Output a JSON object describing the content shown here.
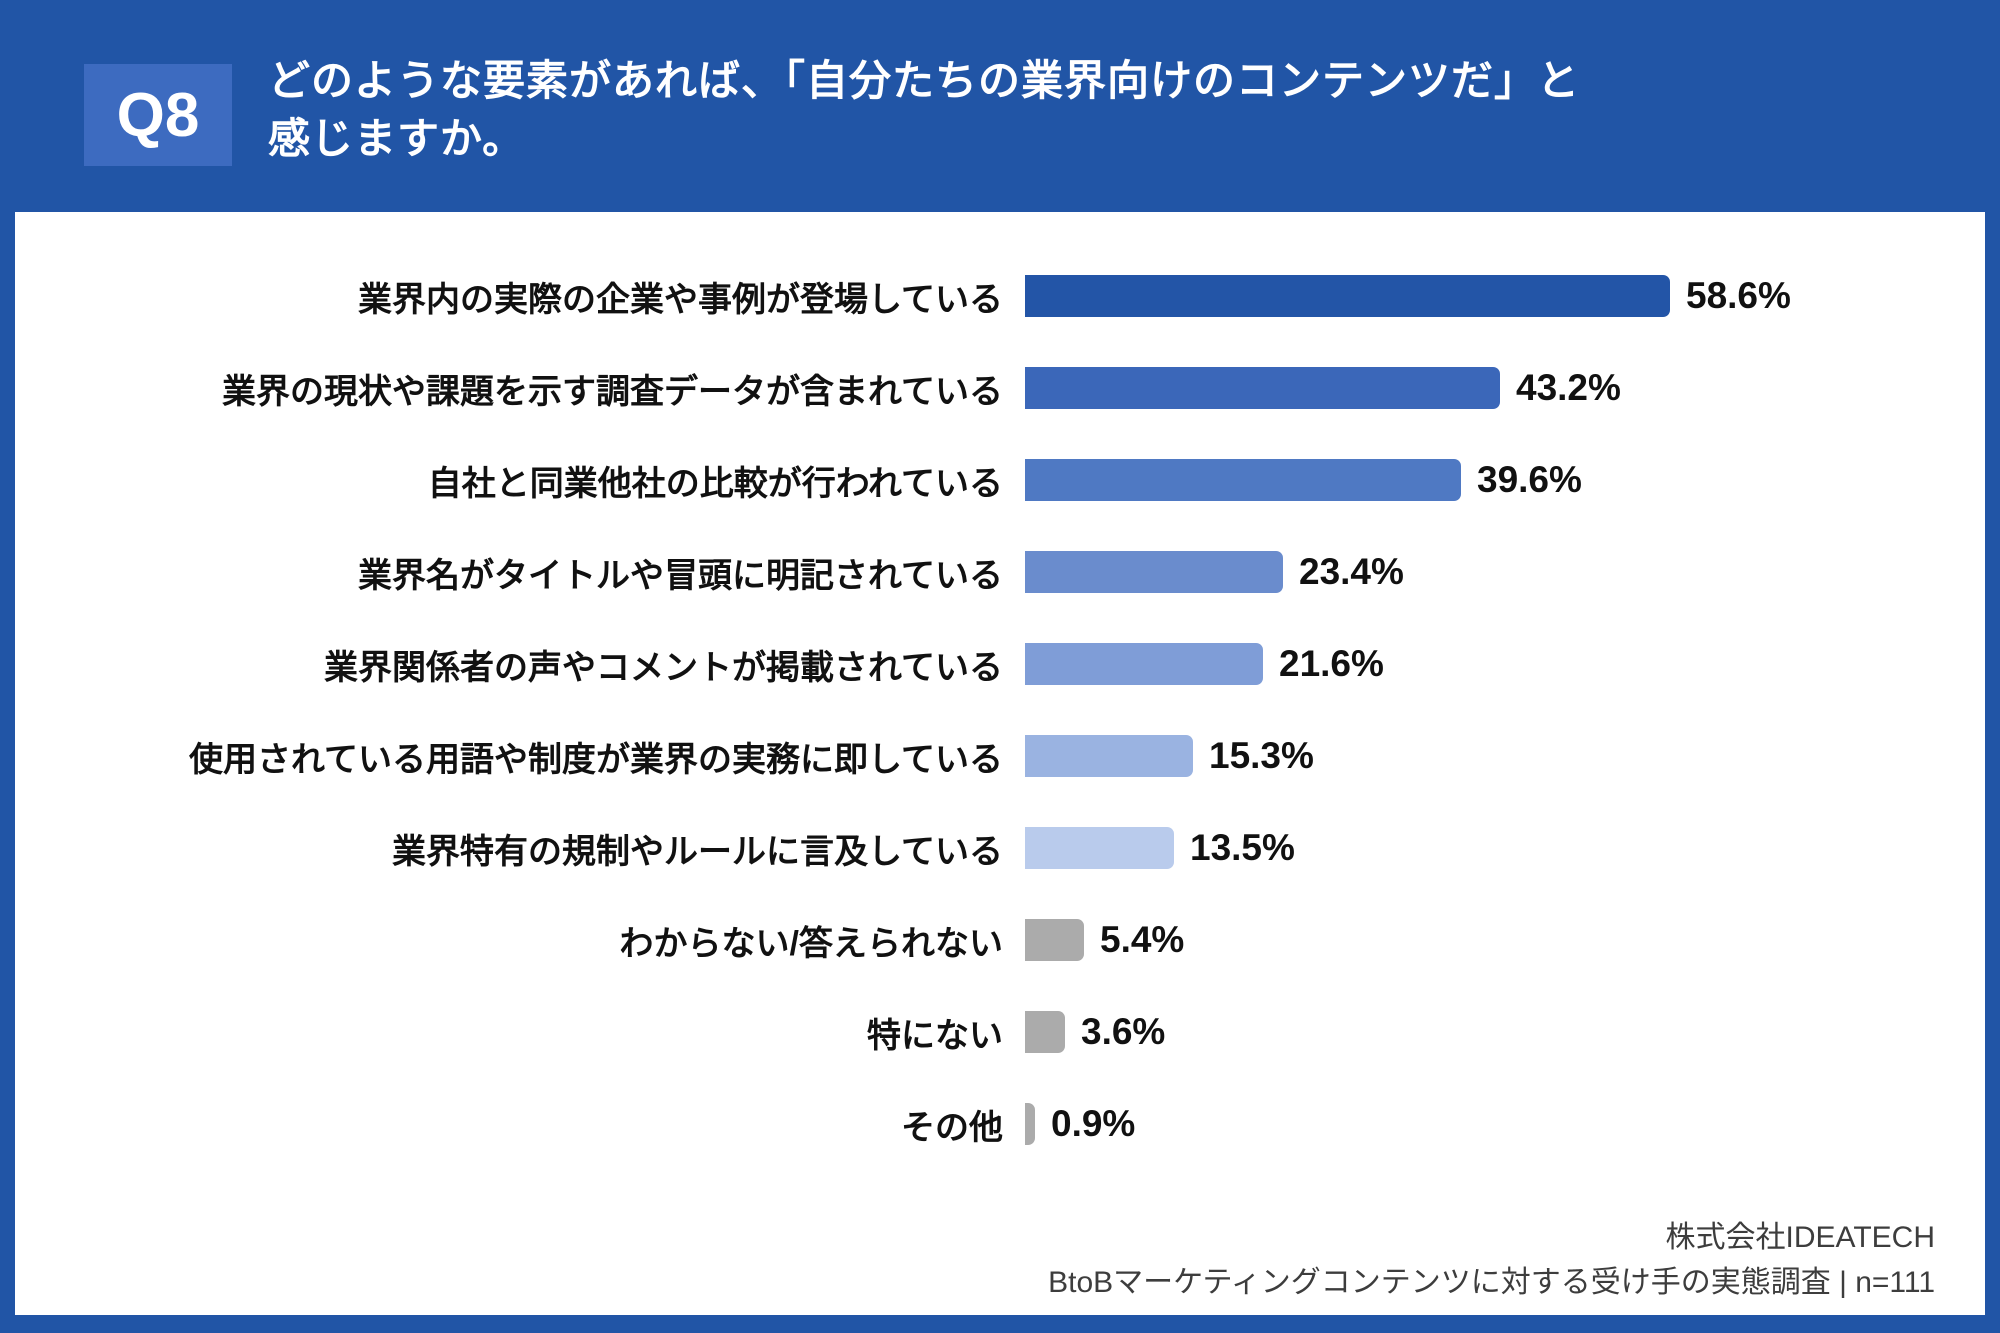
{
  "header": {
    "badge": "Q8",
    "title_lines": [
      "どのような要素があれば、「自分たちの業界向けのコンテンツだ」と",
      "感じますか。"
    ]
  },
  "chart_data": {
    "type": "bar",
    "orientation": "horizontal",
    "title": "",
    "xlabel": "",
    "ylabel": "",
    "grid": false,
    "xlim": [
      0,
      60
    ],
    "unit": "%",
    "value_label_position": "right-of-bar",
    "categories": [
      "業界内の実際の企業や事例が登場している",
      "業界の現状や課題を示す調査データが含まれている",
      "自社と同業他社の比較が行われている",
      "業界名がタイトルや冒頭に明記されている",
      "業界関係者の声やコメントが掲載されている",
      "使用されている用語や制度が業界の実務に即している",
      "業界特有の規制やルールに言及している",
      "わからない/答えられない",
      "特にない",
      "その他"
    ],
    "values": [
      58.6,
      43.2,
      39.6,
      23.4,
      21.6,
      15.3,
      13.5,
      5.4,
      3.6,
      0.9
    ],
    "value_labels": [
      "58.6%",
      "43.2%",
      "39.6%",
      "23.4%",
      "21.6%",
      "15.3%",
      "13.5%",
      "5.4%",
      "3.6%",
      "0.9%"
    ],
    "bar_colors": [
      "#2355A7",
      "#3B67B9",
      "#4F79C3",
      "#6A8CCD",
      "#7F9DD7",
      "#9AB3E1",
      "#B9CBEC",
      "#ABABAB",
      "#ABABAB",
      "#ABABAB"
    ]
  },
  "footer": {
    "company": "株式会社IDEATECH",
    "survey": "BtoBマーケティングコンテンツに対する受け手の実態調査 | n=111"
  },
  "colors": {
    "page_background": "#2155A6",
    "badge_background": "#3D6BC0",
    "panel_background": "#FFFFFF",
    "header_text": "#FFFFFF",
    "label_text": "#111111",
    "footer_text": "#3D3D3D"
  }
}
